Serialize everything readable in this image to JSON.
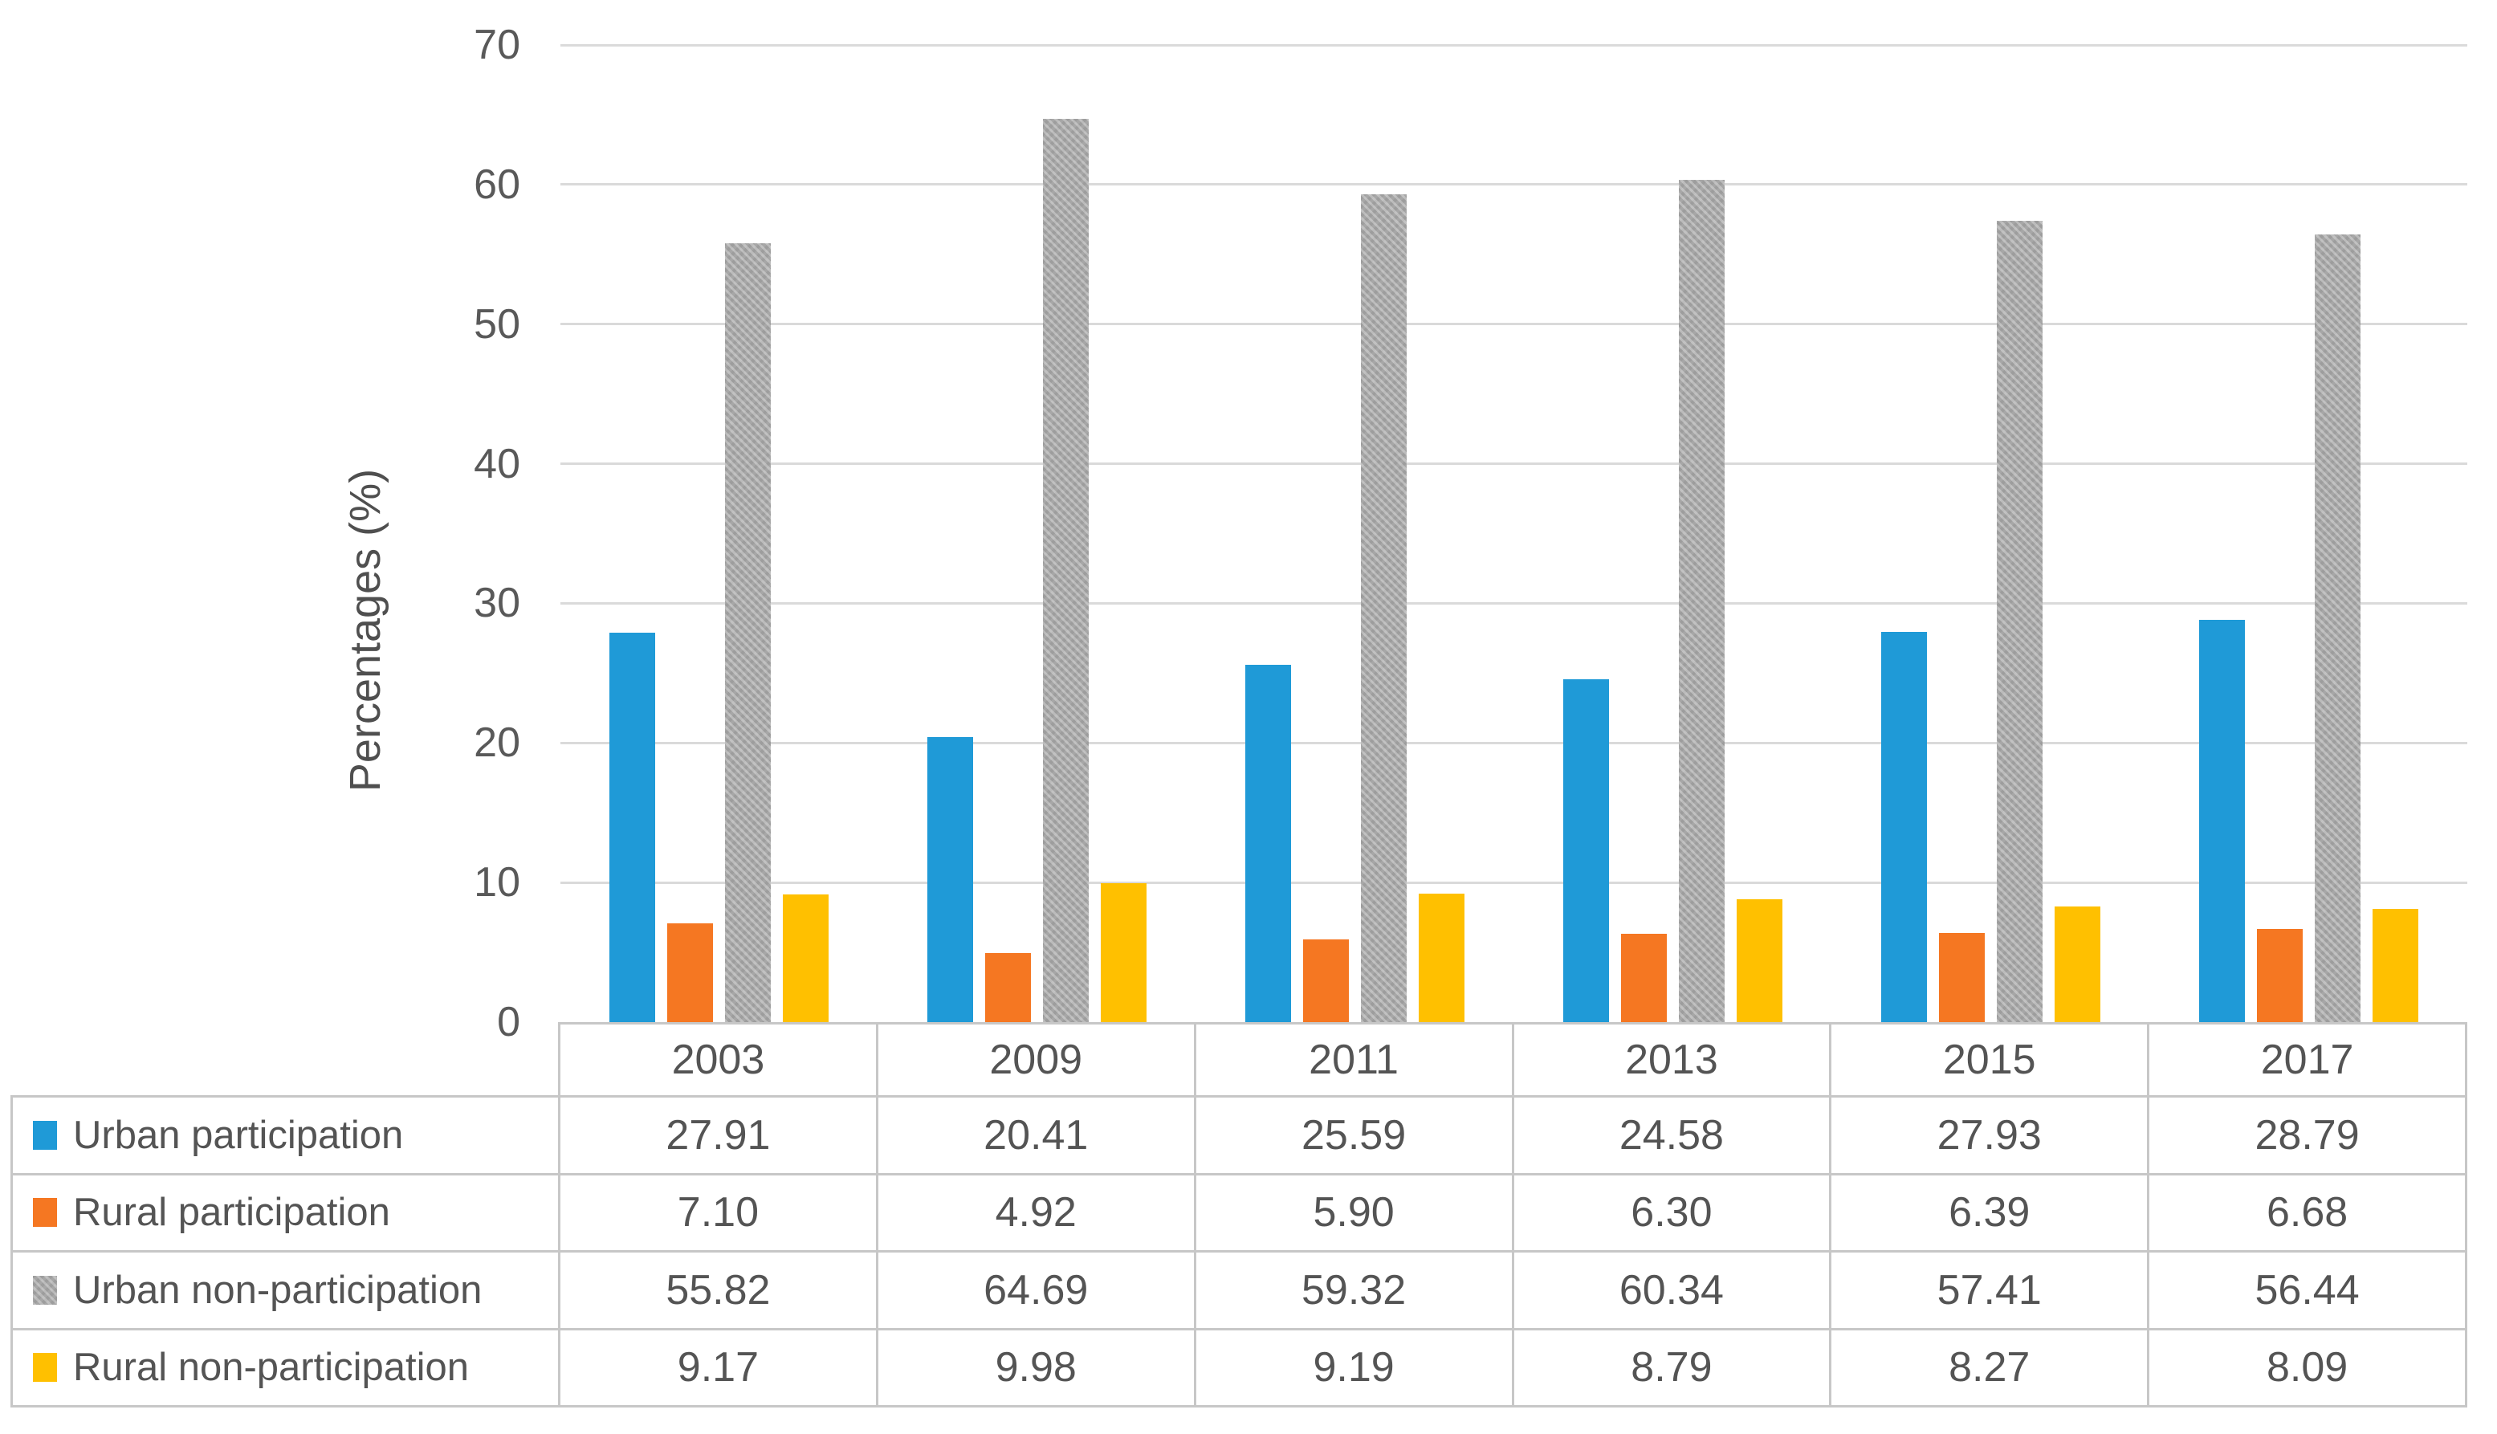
{
  "chart_data": {
    "type": "bar",
    "title": "",
    "xlabel": "",
    "ylabel": "Percentages (%)",
    "ylim": [
      0,
      70
    ],
    "yticks": [
      0,
      10,
      20,
      30,
      40,
      50,
      60,
      70
    ],
    "grid": true,
    "legend_position": "table-left-column",
    "value_decimals": 2,
    "categories": [
      "2003",
      "2009",
      "2011",
      "2013",
      "2015",
      "2017"
    ],
    "series": [
      {
        "name": "Urban participation",
        "color": "#1F9AD7",
        "hatch": false,
        "values": [
          27.91,
          20.41,
          25.59,
          24.58,
          27.93,
          28.79
        ]
      },
      {
        "name": "Rural participation",
        "color": "#F57722",
        "hatch": false,
        "values": [
          7.1,
          4.92,
          5.9,
          6.3,
          6.39,
          6.68
        ]
      },
      {
        "name": "Urban non-participation",
        "color": "#A7A7A7",
        "hatch": true,
        "values": [
          55.82,
          64.69,
          59.32,
          60.34,
          57.41,
          56.44
        ]
      },
      {
        "name": "Rural non-participation",
        "color": "#FFC000",
        "hatch": false,
        "values": [
          9.17,
          9.98,
          9.19,
          8.79,
          8.27,
          8.09
        ]
      }
    ],
    "colors": {
      "gridline": "#dadada",
      "table_border": "#c7c7c7",
      "axis_text": "#595959"
    }
  }
}
